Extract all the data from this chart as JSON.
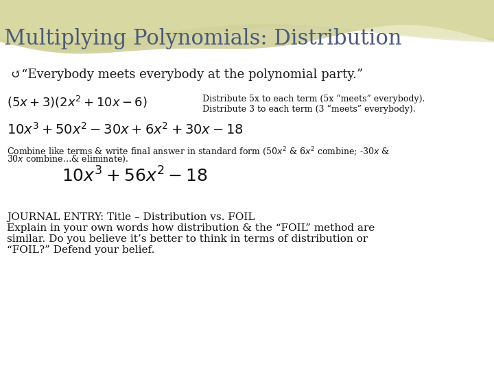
{
  "title": "Multiplying Polynomials: Distribution",
  "title_color": "#4a5a7a",
  "title_fontsize": 22,
  "bg_color": "#ffffff",
  "bullet_text": "↺“Everybody meets everybody at the polynomial party.”",
  "bullet_fontsize": 13,
  "eq1_latex": "$(5x+3)(2x^2+10x-6)$",
  "eq1_note1": "Distribute 5x to each term (5x “meets” everybody).",
  "eq1_note2": "Distribute 3 to each term (3 “meets” everybody).",
  "eq2_latex": "$10x^3+50x^2-30x+6x^2+30x-18$",
  "combine_line1": "Combine like terms & write final answer in standard form (50$x^2$ & 6$x^2$ combine; -30$x$ &",
  "combine_line2": "30$x$ combine…& eliminate).",
  "eq3_latex": "$10x^3+56x^2-18$",
  "journal_line1": "JOURNAL ENTRY: Title – Distribution vs. FOIL",
  "journal_line2": "Explain in your own words how distribution & the “FOIL” method are",
  "journal_line3": "similar. Do you believe it’s better to think in terms of distribution or",
  "journal_line4": "“FOIL?” Defend your belief.",
  "journal_fontsize": 11,
  "note_fontsize": 9,
  "eq1_fontsize": 13,
  "eq2_fontsize": 14,
  "eq3_fontsize": 18,
  "combine_fontsize": 9
}
